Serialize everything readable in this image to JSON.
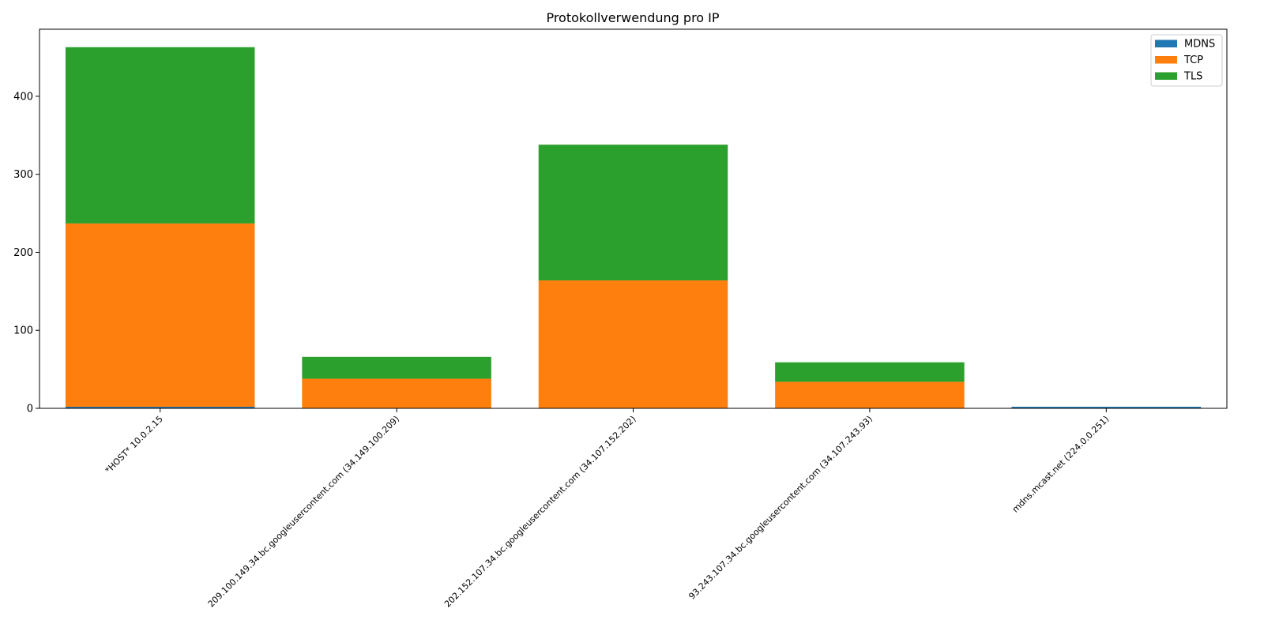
{
  "chart_data": {
    "type": "bar",
    "stacked": true,
    "title": "Protokollverwendung pro IP",
    "xlabel": "",
    "ylabel": "",
    "categories": [
      "*HOST* 10.0.2.15",
      "209.100.149.34.bc.googleusercontent.com (34.149.100.209)",
      "202.152.107.34.bc.googleusercontent.com (34.107.152.202)",
      "93.243.107.34.bc.googleusercontent.com (34.107.243.93)",
      "mdns.mcast.net (224.0.0.251)"
    ],
    "series": [
      {
        "name": "MDNS",
        "color": "#1f77b4",
        "values": [
          2,
          0,
          0,
          0,
          2
        ]
      },
      {
        "name": "TCP",
        "color": "#ff7f0e",
        "values": [
          235,
          38,
          164,
          34,
          0
        ]
      },
      {
        "name": "TLS",
        "color": "#2ca02c",
        "values": [
          226,
          28,
          174,
          25,
          0
        ]
      }
    ],
    "ylim": [
      0,
      486
    ],
    "yticks": [
      0,
      100,
      200,
      300,
      400
    ],
    "grid": false,
    "legend_position": "top-right"
  }
}
